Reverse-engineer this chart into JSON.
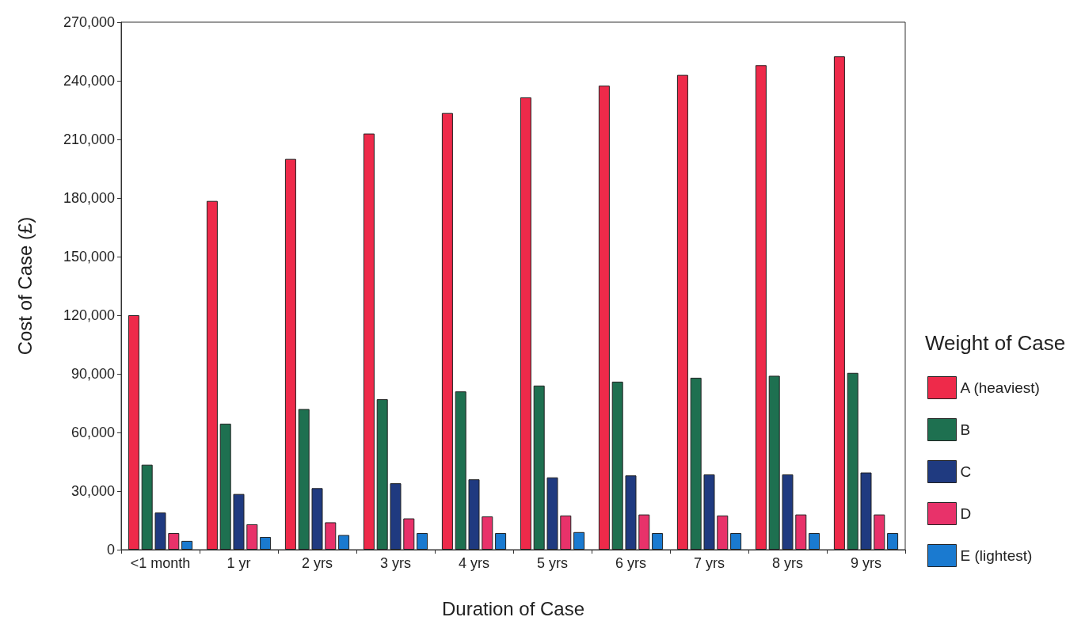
{
  "chart_data": {
    "type": "bar",
    "xlabel": "Duration of Case",
    "ylabel": "Cost of Case (£)",
    "legend_title": "Weight of Case",
    "legend": "right",
    "categories": [
      "<1 month",
      "1 yr",
      "2 yrs",
      "3 yrs",
      "4 yrs",
      "5 yrs",
      "6 yrs",
      "7 yrs",
      "8 yrs",
      "9 yrs"
    ],
    "series": [
      {
        "name": "A (heaviest)",
        "color": "#ee2a4a",
        "values": [
          120000,
          178500,
          200000,
          213000,
          223500,
          231500,
          237500,
          243000,
          248000,
          252500
        ]
      },
      {
        "name": "B",
        "color": "#1e7050",
        "values": [
          43500,
          64500,
          72000,
          77000,
          81000,
          84000,
          86000,
          88000,
          89000,
          90500
        ]
      },
      {
        "name": "C",
        "color": "#1f3a80",
        "values": [
          19000,
          28500,
          31500,
          34000,
          36000,
          37000,
          38000,
          38500,
          38500,
          39500
        ]
      },
      {
        "name": "D",
        "color": "#e8326a",
        "values": [
          8500,
          13000,
          14000,
          16000,
          17000,
          17500,
          18000,
          17500,
          18000,
          18000
        ]
      },
      {
        "name": "E (lightest)",
        "color": "#1a7ad0",
        "values": [
          4500,
          6500,
          7500,
          8500,
          8500,
          9000,
          8500,
          8500,
          8500,
          8500
        ]
      }
    ],
    "ylim": [
      0,
      270000
    ],
    "yticks": [
      {
        "value": 0,
        "label": "0"
      },
      {
        "value": 30000,
        "label": "30,000"
      },
      {
        "value": 60000,
        "label": "60,000"
      },
      {
        "value": 90000,
        "label": "90,000"
      },
      {
        "value": 120000,
        "label": "120,000"
      },
      {
        "value": 150000,
        "label": "150,000"
      },
      {
        "value": 180000,
        "label": "180,000"
      },
      {
        "value": 210000,
        "label": "210,000"
      },
      {
        "value": 240000,
        "label": "240,000"
      },
      {
        "value": 270000,
        "label": "270,000"
      }
    ],
    "grid": false
  }
}
